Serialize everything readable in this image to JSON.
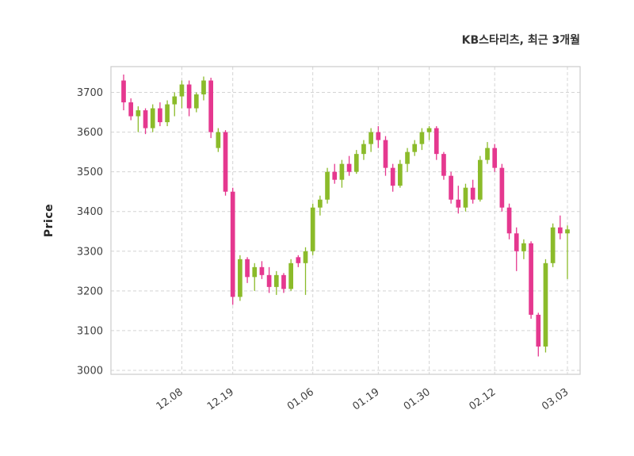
{
  "chart_data": {
    "type": "candlestick",
    "title": "KB스타리츠, 최근 3개월",
    "ylabel": "Price",
    "ylim": [
      2990,
      3765
    ],
    "yticks": [
      3000,
      3100,
      3200,
      3300,
      3400,
      3500,
      3600,
      3700
    ],
    "xticks": [
      {
        "index": 8,
        "label": "12.08"
      },
      {
        "index": 15,
        "label": "12.19"
      },
      {
        "index": 26,
        "label": "01.06"
      },
      {
        "index": 35,
        "label": "01.19"
      },
      {
        "index": 42,
        "label": "01.30"
      },
      {
        "index": 51,
        "label": "02.12"
      },
      {
        "index": 61,
        "label": "03.03"
      }
    ],
    "grid": "dashed",
    "legend": "none",
    "colors": {
      "up": "#8bbb2a",
      "down": "#e5388f",
      "grid": "#d4d4d4",
      "border": "#cccccc",
      "axis_text": "#404040"
    },
    "candles": [
      [
        3730,
        3745,
        3655,
        3675
      ],
      [
        3675,
        3685,
        3630,
        3640
      ],
      [
        3640,
        3665,
        3600,
        3655
      ],
      [
        3655,
        3660,
        3595,
        3610
      ],
      [
        3610,
        3670,
        3600,
        3660
      ],
      [
        3660,
        3675,
        3615,
        3625
      ],
      [
        3625,
        3680,
        3615,
        3670
      ],
      [
        3670,
        3700,
        3640,
        3690
      ],
      [
        3690,
        3730,
        3660,
        3720
      ],
      [
        3720,
        3730,
        3640,
        3660
      ],
      [
        3660,
        3700,
        3650,
        3695
      ],
      [
        3695,
        3740,
        3680,
        3730
      ],
      [
        3730,
        3737,
        3585,
        3600
      ],
      [
        3560,
        3610,
        3550,
        3600
      ],
      [
        3600,
        3605,
        3440,
        3450
      ],
      [
        3450,
        3460,
        3165,
        3185
      ],
      [
        3185,
        3290,
        3175,
        3280
      ],
      [
        3280,
        3285,
        3220,
        3235
      ],
      [
        3235,
        3270,
        3200,
        3260
      ],
      [
        3260,
        3275,
        3230,
        3240
      ],
      [
        3240,
        3260,
        3195,
        3210
      ],
      [
        3210,
        3250,
        3190,
        3240
      ],
      [
        3240,
        3245,
        3195,
        3205
      ],
      [
        3205,
        3280,
        3200,
        3270
      ],
      [
        3285,
        3290,
        3260,
        3270
      ],
      [
        3270,
        3310,
        3190,
        3300
      ],
      [
        3300,
        3420,
        3290,
        3410
      ],
      [
        3410,
        3440,
        3390,
        3430
      ],
      [
        3430,
        3510,
        3420,
        3500
      ],
      [
        3500,
        3520,
        3470,
        3480
      ],
      [
        3480,
        3530,
        3460,
        3520
      ],
      [
        3520,
        3540,
        3490,
        3500
      ],
      [
        3500,
        3555,
        3495,
        3545
      ],
      [
        3545,
        3580,
        3530,
        3570
      ],
      [
        3570,
        3610,
        3550,
        3600
      ],
      [
        3600,
        3615,
        3560,
        3580
      ],
      [
        3580,
        3590,
        3490,
        3510
      ],
      [
        3510,
        3520,
        3450,
        3465
      ],
      [
        3465,
        3530,
        3460,
        3520
      ],
      [
        3520,
        3560,
        3500,
        3550
      ],
      [
        3550,
        3580,
        3540,
        3570
      ],
      [
        3570,
        3610,
        3555,
        3600
      ],
      [
        3600,
        3615,
        3580,
        3610
      ],
      [
        3610,
        3615,
        3530,
        3545
      ],
      [
        3545,
        3550,
        3480,
        3490
      ],
      [
        3490,
        3500,
        3420,
        3430
      ],
      [
        3430,
        3465,
        3395,
        3410
      ],
      [
        3410,
        3470,
        3400,
        3460
      ],
      [
        3460,
        3480,
        3420,
        3430
      ],
      [
        3430,
        3540,
        3425,
        3530
      ],
      [
        3530,
        3575,
        3520,
        3560
      ],
      [
        3560,
        3570,
        3500,
        3510
      ],
      [
        3510,
        3520,
        3400,
        3410
      ],
      [
        3410,
        3420,
        3330,
        3345
      ],
      [
        3345,
        3360,
        3250,
        3300
      ],
      [
        3300,
        3330,
        3280,
        3320
      ],
      [
        3320,
        3325,
        3130,
        3140
      ],
      [
        3140,
        3145,
        3035,
        3060
      ],
      [
        3060,
        3280,
        3045,
        3270
      ],
      [
        3270,
        3370,
        3260,
        3360
      ],
      [
        3360,
        3390,
        3330,
        3345
      ],
      [
        3345,
        3365,
        3230,
        3355
      ]
    ]
  }
}
